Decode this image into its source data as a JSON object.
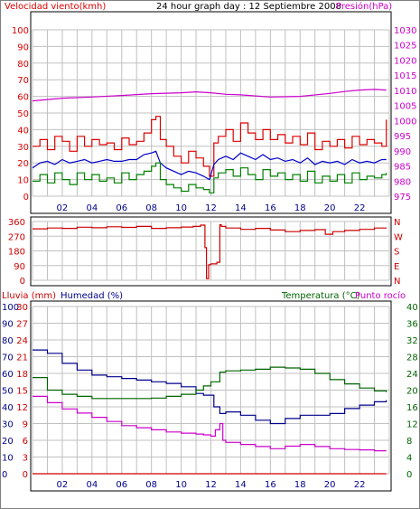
{
  "header": {
    "wind_label": "Velocidad viento(kmh)",
    "title": "24 hour graph day : 12 Septiembre 2008",
    "pressure_label": "Presión(hPa)"
  },
  "colors": {
    "wind": "#dd0000",
    "wind_avg": "#0000cc",
    "wind_min": "#008000",
    "pressure": "#cc00cc",
    "humidity": "#00008b",
    "temperature": "#006400",
    "dewpoint": "#cc00cc",
    "rain": "#cc0000",
    "direction": "#cc0000",
    "grid": "#c0c0c0",
    "frame": "#000000"
  },
  "chart_data": [
    {
      "id": "wind-pressure",
      "type": "line",
      "x_ticks": [
        "02",
        "04",
        "06",
        "08",
        "10",
        "12",
        "14",
        "16",
        "18",
        "20",
        "22"
      ],
      "xlim": [
        0,
        24
      ],
      "y_left": {
        "label": "Velocidad viento(kmh)",
        "ylim": [
          0,
          100
        ],
        "ticks": [
          "0",
          "10",
          "20",
          "30",
          "40",
          "50",
          "60",
          "70",
          "80",
          "90",
          "100"
        ]
      },
      "y_right": {
        "label": "Presión(hPa)",
        "ylim": [
          975,
          1030
        ],
        "ticks": [
          "975",
          "980",
          "985",
          "990",
          "995",
          "1000",
          "1005",
          "1010",
          "1015",
          "1020",
          "1025",
          "1030"
        ]
      },
      "series": [
        {
          "key": "gust",
          "axis": "left",
          "color_key": "wind",
          "step": true,
          "x": [
            0.0,
            0.5,
            1.0,
            1.5,
            2.0,
            2.5,
            3.0,
            3.5,
            4.0,
            4.5,
            5.0,
            5.5,
            6.0,
            6.5,
            7.0,
            7.5,
            8.0,
            8.3,
            8.6,
            9.0,
            9.5,
            10.0,
            10.5,
            11.0,
            11.5,
            11.9,
            12.2,
            12.5,
            13.0,
            13.5,
            14.0,
            14.5,
            15.0,
            15.5,
            16.0,
            16.5,
            17.0,
            17.5,
            18.0,
            18.5,
            19.0,
            19.5,
            20.0,
            20.5,
            21.0,
            21.5,
            22.0,
            22.5,
            23.0,
            23.5,
            23.8
          ],
          "y": [
            30,
            34,
            28,
            36,
            33,
            27,
            36,
            30,
            34,
            31,
            32,
            28,
            35,
            31,
            33,
            38,
            46,
            48,
            34,
            30,
            24,
            20,
            27,
            23,
            18,
            12,
            32,
            36,
            40,
            33,
            44,
            38,
            34,
            40,
            34,
            37,
            32,
            36,
            31,
            38,
            28,
            33,
            30,
            34,
            29,
            36,
            31,
            34,
            32,
            30,
            46
          ]
        },
        {
          "key": "wind_avg",
          "axis": "left",
          "color_key": "wind_avg",
          "step": false,
          "x": [
            0.0,
            0.5,
            1.0,
            1.5,
            2.0,
            2.5,
            3.0,
            3.5,
            4.0,
            4.5,
            5.0,
            5.5,
            6.0,
            6.5,
            7.0,
            7.5,
            8.0,
            8.3,
            8.6,
            9.0,
            9.5,
            10.0,
            10.5,
            11.0,
            11.5,
            11.9,
            12.2,
            12.5,
            13.0,
            13.5,
            14.0,
            14.5,
            15.0,
            15.5,
            16.0,
            16.5,
            17.0,
            17.5,
            18.0,
            18.5,
            19.0,
            19.5,
            20.0,
            20.5,
            21.0,
            21.5,
            22.0,
            22.5,
            23.0,
            23.5,
            23.8
          ],
          "y": [
            17,
            20,
            21,
            19,
            22,
            20,
            21,
            22,
            20,
            21,
            22,
            21,
            21,
            22,
            22,
            25,
            26,
            27,
            20,
            17,
            15,
            13,
            15,
            14,
            12,
            10,
            19,
            22,
            24,
            22,
            26,
            24,
            22,
            25,
            22,
            23,
            21,
            22,
            20,
            23,
            19,
            21,
            20,
            21,
            19,
            22,
            20,
            21,
            20,
            22,
            22
          ]
        },
        {
          "key": "wind_min",
          "axis": "left",
          "color_key": "wind_min",
          "step": true,
          "x": [
            0.0,
            0.5,
            1.0,
            1.5,
            2.0,
            2.5,
            3.0,
            3.5,
            4.0,
            4.5,
            5.0,
            5.5,
            6.0,
            6.5,
            7.0,
            7.5,
            8.0,
            8.3,
            8.6,
            9.0,
            9.5,
            10.0,
            10.5,
            11.0,
            11.5,
            11.9,
            12.2,
            12.5,
            13.0,
            13.5,
            14.0,
            14.5,
            15.0,
            15.5,
            16.0,
            16.5,
            17.0,
            17.5,
            18.0,
            18.5,
            19.0,
            19.5,
            20.0,
            20.5,
            21.0,
            21.5,
            22.0,
            22.5,
            23.0,
            23.5,
            23.8
          ],
          "y": [
            9,
            13,
            8,
            14,
            10,
            7,
            14,
            10,
            13,
            9,
            11,
            8,
            14,
            10,
            13,
            15,
            18,
            20,
            10,
            7,
            5,
            3,
            7,
            5,
            4,
            2,
            11,
            14,
            16,
            12,
            17,
            13,
            10,
            16,
            12,
            14,
            10,
            13,
            9,
            15,
            8,
            12,
            9,
            13,
            8,
            14,
            10,
            12,
            11,
            13,
            14
          ]
        },
        {
          "key": "pressure",
          "axis": "right",
          "color_key": "pressure",
          "step": false,
          "x": [
            0,
            2,
            4,
            6,
            8,
            10,
            11,
            12,
            13,
            14,
            16,
            18,
            20,
            21,
            22,
            23,
            23.8
          ],
          "y": [
            1006.5,
            1007.4,
            1007.8,
            1008.3,
            1008.9,
            1009.2,
            1009.5,
            1009.2,
            1008.7,
            1008.5,
            1007.8,
            1008.0,
            1009.0,
            1009.6,
            1010.1,
            1010.3,
            1010.1
          ]
        }
      ]
    },
    {
      "id": "wind-direction",
      "type": "line",
      "x_ticks": [
        "02",
        "04",
        "06",
        "08",
        "10",
        "12",
        "14",
        "16",
        "18",
        "20",
        "22"
      ],
      "xlim": [
        0,
        24
      ],
      "y_left": {
        "ylim": [
          0,
          360
        ],
        "ticks": [
          "0",
          "90",
          "180",
          "270",
          "360"
        ]
      },
      "y_right": {
        "ylim": [
          0,
          360
        ],
        "ticks": [
          "N",
          "E",
          "S",
          "W",
          "N"
        ]
      },
      "series": [
        {
          "key": "direction",
          "color_key": "direction",
          "step": true,
          "x": [
            0,
            1,
            2,
            3,
            4,
            5,
            6,
            7,
            8,
            9,
            10,
            10.8,
            11.3,
            11.6,
            11.7,
            11.85,
            12.0,
            12.4,
            12.6,
            12.7,
            13,
            14,
            15,
            16,
            17,
            18,
            19,
            19.7,
            20.2,
            21,
            22,
            23,
            23.8
          ],
          "y": [
            315,
            320,
            318,
            325,
            322,
            328,
            324,
            330,
            318,
            322,
            326,
            330,
            338,
            200,
            10,
            95,
            100,
            110,
            340,
            330,
            320,
            312,
            318,
            308,
            298,
            305,
            310,
            282,
            298,
            305,
            312,
            320,
            318
          ]
        }
      ]
    },
    {
      "id": "rain-humidity-temperature",
      "type": "line",
      "header_labels": {
        "rain": "Lluvia (mm)",
        "humidity": "Humedad (%)",
        "temperature": "Temperatura (°C)",
        "dewpoint": "Punto rocío"
      },
      "x_ticks": [
        "02",
        "04",
        "06",
        "08",
        "10",
        "12",
        "14",
        "16",
        "18",
        "20",
        "22"
      ],
      "xlim": [
        0,
        24
      ],
      "y_humidity": {
        "ylim": [
          0,
          100
        ],
        "ticks": [
          "0",
          "10",
          "20",
          "30",
          "40",
          "50",
          "60",
          "70",
          "80",
          "90",
          "100"
        ]
      },
      "y_rain": {
        "ylim": [
          0,
          30
        ],
        "ticks": [
          "0",
          "3",
          "6",
          "9",
          "12",
          "15",
          "18",
          "21",
          "24",
          "27",
          "30"
        ]
      },
      "y_right": {
        "ylim": [
          0,
          40
        ],
        "ticks": [
          "0",
          "4",
          "8",
          "12",
          "16",
          "20",
          "24",
          "28",
          "32",
          "36",
          "40"
        ]
      },
      "series": [
        {
          "key": "humidity",
          "axis": "humidity",
          "color_key": "humidity",
          "step": true,
          "x": [
            0,
            1,
            2,
            3,
            4,
            5,
            6,
            7,
            8,
            9,
            10,
            11,
            11.5,
            12.2,
            12.6,
            13,
            14,
            15,
            16,
            17,
            18,
            19,
            20,
            21,
            22,
            23,
            23.8
          ],
          "y": [
            74,
            72,
            66,
            62,
            59,
            58,
            57,
            56,
            55,
            54,
            52,
            48,
            47,
            40,
            36,
            37,
            35,
            32,
            30,
            33,
            35,
            35,
            36,
            39,
            41,
            43,
            44
          ]
        },
        {
          "key": "temperature",
          "axis": "right",
          "color_key": "temperature",
          "step": true,
          "x": [
            0,
            1,
            2,
            3,
            4,
            5,
            6,
            7,
            8,
            9,
            10,
            11,
            11.5,
            12,
            12.6,
            13,
            14,
            15,
            16,
            17,
            18,
            19,
            20,
            21,
            22,
            23,
            23.8
          ],
          "y": [
            23,
            20,
            19,
            18.5,
            18,
            18,
            18,
            18,
            18.1,
            18.5,
            19,
            20,
            21,
            22,
            24.3,
            24.6,
            24.8,
            25,
            25.5,
            25.3,
            25,
            24,
            22.5,
            21.5,
            20.5,
            19.8,
            19.5
          ]
        },
        {
          "key": "dewpoint",
          "axis": "right",
          "color_key": "dewpoint",
          "step": true,
          "x": [
            0,
            1,
            2,
            3,
            4,
            5,
            6,
            7,
            8,
            9,
            10,
            11,
            11.5,
            12,
            12.3,
            12.6,
            12.8,
            13,
            14,
            15,
            16,
            17,
            18,
            19,
            20,
            21,
            22,
            23,
            23.8
          ],
          "y": [
            18.5,
            17,
            15.5,
            14.5,
            13.5,
            12.5,
            11.5,
            11,
            10.5,
            10,
            9.7,
            9.5,
            9.3,
            9,
            10.5,
            12,
            8,
            7.5,
            7,
            6.5,
            6,
            6.6,
            7,
            6.5,
            6,
            5.8,
            5.7,
            5.5,
            5.5
          ]
        },
        {
          "key": "rain",
          "axis": "rain",
          "color_key": "rain",
          "step": false,
          "x": [
            0,
            23.8
          ],
          "y": [
            0,
            0
          ]
        }
      ]
    }
  ]
}
